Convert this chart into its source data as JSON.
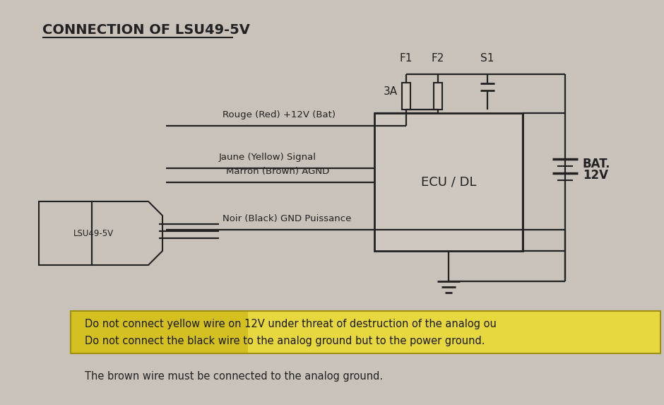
{
  "title": "CONNECTION OF LSU49-5V",
  "bg_color": "#c8c2ba",
  "warning_bg_left": "#d4c020",
  "warning_bg_right": "#e8d840",
  "warning_text1": "Do not connect yellow wire on 12V under threat of destruction of the analog ou",
  "warning_text2": "Do not connect the black wire to the analog ground but to the power ground.",
  "bottom_text": "The brown wire must be connected to the analog ground.",
  "label_red": "Rouge (Red) +12V (Bat)",
  "label_yellow": "Jaune (Yellow) Signal",
  "label_brown": "Marron (Brown) AGND",
  "label_black": "Noir (Black) GND Puissance",
  "ecu_label": "ECU / DL",
  "lsu_label": "LSU49-5V",
  "f1_label": "F1",
  "f2_label": "F2",
  "s1_label": "S1",
  "fuse_sublabel": "3A",
  "bat_line1": "BAT.",
  "bat_line2": "12V",
  "line_color": "#222222",
  "text_color": "#222222",
  "warn_text_color": "#1a1a0a"
}
